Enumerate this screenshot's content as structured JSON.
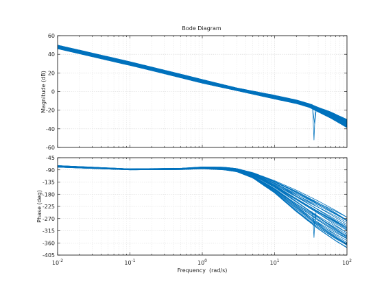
{
  "chart_data": [
    {
      "type": "line",
      "panel": "magnitude",
      "title": "Bode Diagram",
      "xlabel": "",
      "ylabel": "Magnitude (dB)",
      "xscale": "log",
      "xlim": [
        0.01,
        100
      ],
      "ylim": [
        -60,
        60
      ],
      "yticks": [
        60,
        40,
        20,
        0,
        -20,
        -40,
        -60
      ],
      "grid": true,
      "series_description": "approx. 40 overlapping frequency responses, shown as an envelope band",
      "series": [
        {
          "x": [
            0.01,
            0.1,
            1,
            3,
            10,
            20,
            30,
            40,
            60,
            100
          ],
          "upper": [
            50,
            32,
            13,
            4,
            -4,
            -9,
            -13,
            -17,
            -22,
            -30
          ],
          "lower": [
            46,
            28,
            9,
            1,
            -8,
            -13,
            -17,
            -22,
            -29,
            -39
          ],
          "notch_frequency": 35,
          "notch_depth": -52
        }
      ]
    },
    {
      "type": "line",
      "panel": "phase",
      "title": "",
      "xlabel": "Frequency  (rad/s)",
      "ylabel": "Phase (deg)",
      "xscale": "log",
      "xlim": [
        0.01,
        100
      ],
      "ylim": [
        -405,
        -45
      ],
      "yticks": [
        -45,
        -90,
        -135,
        -180,
        -225,
        -270,
        -315,
        -360,
        -405
      ],
      "xticks": [
        0.01,
        0.1,
        1,
        10,
        100
      ],
      "xticklabels": [
        {
          "base": "10",
          "exp": "-2"
        },
        {
          "base": "10",
          "exp": "-1"
        },
        {
          "base": "10",
          "exp": "0"
        },
        {
          "base": "10",
          "exp": "1"
        },
        {
          "base": "10",
          "exp": "2"
        }
      ],
      "grid": true,
      "series": [
        {
          "x": [
            0.01,
            0.1,
            0.5,
            1,
            2,
            3,
            5,
            10,
            20,
            40,
            70,
            100
          ],
          "upper": [
            -74,
            -86,
            -84,
            -79,
            -80,
            -85,
            -100,
            -130,
            -165,
            -205,
            -240,
            -265
          ],
          "lower": [
            -80,
            -90,
            -89,
            -86,
            -90,
            -97,
            -120,
            -175,
            -245,
            -310,
            -355,
            -380
          ],
          "notch_frequency": 35,
          "notch_depth": -340
        }
      ]
    }
  ],
  "colors": {
    "line": "#0072bd",
    "grid": "#cfcfcf",
    "axis": "#000000",
    "text": "#222222"
  }
}
